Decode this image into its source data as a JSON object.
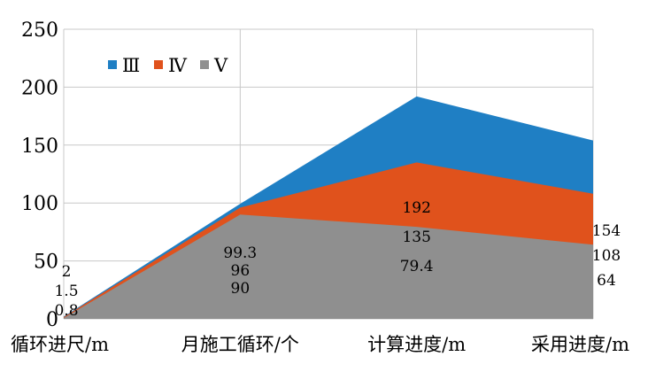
{
  "chart_data": {
    "type": "area",
    "categories": [
      "循环进尺/m",
      "月施工循环/个",
      "计算进度/m",
      "采用进度/m"
    ],
    "series": [
      {
        "name": "Ⅲ",
        "values": [
          2,
          99.3,
          192,
          154
        ],
        "color": "#1f7fc4"
      },
      {
        "name": "Ⅳ",
        "values": [
          1.5,
          96,
          135,
          108
        ],
        "color": "#e0521c"
      },
      {
        "name": "Ⅴ",
        "values": [
          0.8,
          90,
          79.4,
          64
        ],
        "color": "#8f8f8f"
      }
    ],
    "ylim": [
      0,
      250
    ],
    "yticks": [
      0,
      50,
      100,
      150,
      200,
      250
    ],
    "grid": true,
    "legend_position": "top-left"
  }
}
